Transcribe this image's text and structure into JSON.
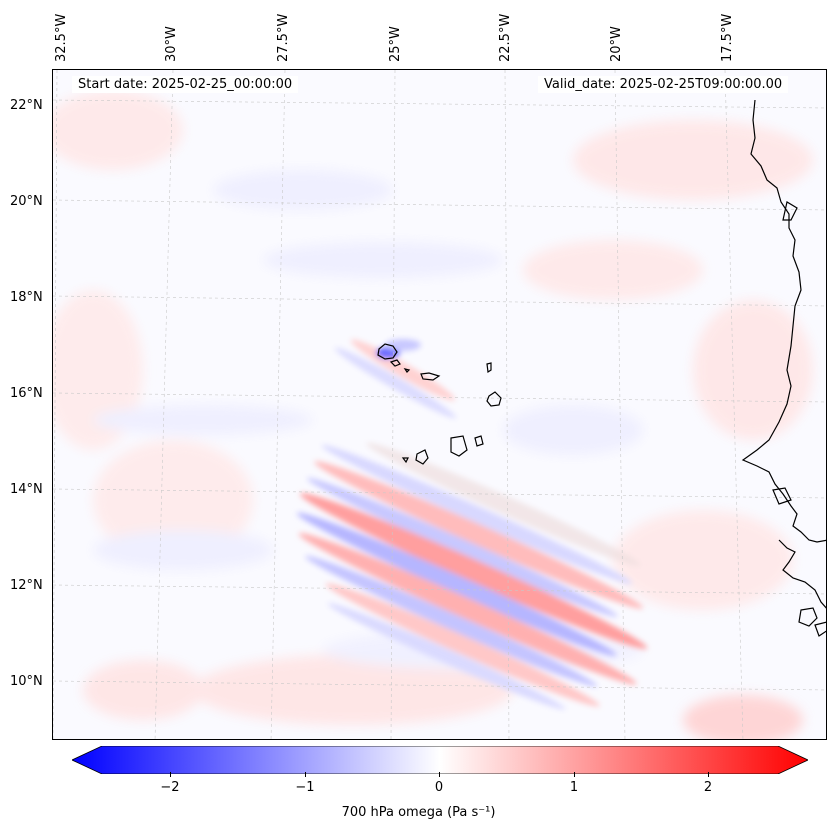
{
  "map": {
    "lon_labels": [
      "32.5°W",
      "30°W",
      "27.5°W",
      "25°W",
      "22.5°W",
      "20°W",
      "17.5°W"
    ],
    "lat_labels": [
      "22°N",
      "20°N",
      "18°N",
      "16°N",
      "14°N",
      "12°N",
      "10°N"
    ],
    "start_date": "Start date: 2025-02-25_00:00:00",
    "valid_date": "Valid_date: 2025-02-25T09:00:00.00",
    "variable": "700 hPa omega",
    "colormap": "bwr"
  },
  "colorbar": {
    "label": "700 hPa omega (Pa s⁻¹)",
    "ticks": [
      "−2",
      "−1",
      "0",
      "1",
      "2"
    ],
    "min": -2.6,
    "max": 2.6,
    "colors": {
      "negative": "#0000ff",
      "zero": "#ffffff",
      "positive": "#ff0000"
    }
  }
}
